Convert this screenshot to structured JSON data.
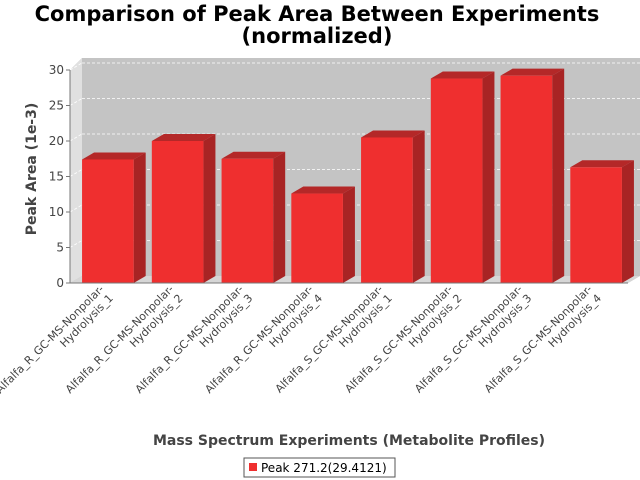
{
  "chart_data": {
    "type": "bar",
    "title_line1": "Comparison of Peak Area Between Experiments",
    "title_line2": "(normalized)",
    "xlabel": "Mass Spectrum Experiments (Metabolite Profiles)",
    "ylabel": "Peak Area (1e-3)",
    "ylim": [
      0,
      30
    ],
    "yticks": [
      "0",
      "5",
      "10",
      "15",
      "20",
      "25",
      "30"
    ],
    "grid": true,
    "legend_position": "bottom-center",
    "categories": [
      [
        "Alfalfa_R_GC-MS-Nonpolar-",
        "Hydrolysis_1"
      ],
      [
        "Alfalfa_R_GC-MS-Nonpolar-",
        "Hydrolysis_2"
      ],
      [
        "Alfalfa_R_GC-MS-Nonpolar-",
        "Hydrolysis_3"
      ],
      [
        "Alfalfa_R_GC-MS-Nonpolar-",
        "Hydrolysis_4"
      ],
      [
        "Alfalfa_S_GC-MS-Nonpolar-",
        "Hydrolysis_1"
      ],
      [
        "Alfalfa_S_GC-MS-Nonpolar-",
        "Hydrolysis_2"
      ],
      [
        "Alfalfa_S_GC-MS-Nonpolar-",
        "Hydrolysis_3"
      ],
      [
        "Alfalfa_S_GC-MS-Nonpolar-",
        "Hydrolysis_4"
      ]
    ],
    "series": [
      {
        "name": "Peak 271.2(29.4121)",
        "color": "#ef2f2f",
        "values": [
          17.4,
          20.0,
          17.5,
          12.6,
          20.5,
          28.8,
          29.2,
          16.3
        ]
      }
    ]
  }
}
